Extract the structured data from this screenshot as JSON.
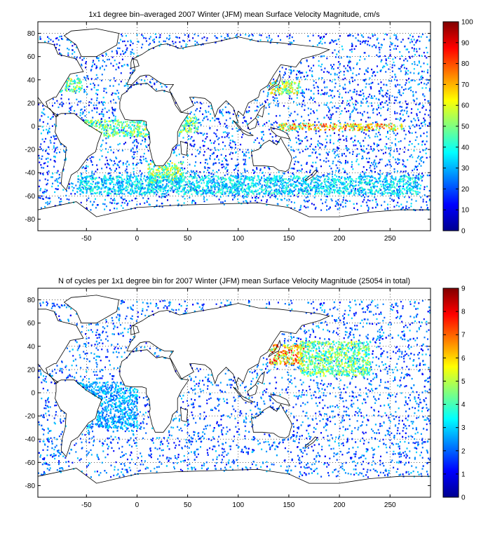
{
  "chart_data": [
    {
      "type": "heatmap",
      "title": "1x1 degree bin–averaged 2007 Winter (JFM) mean Surface Velocity Magnitude, cm/s",
      "xlabel": "",
      "ylabel": "",
      "xlim": [
        -98,
        290
      ],
      "ylim": [
        -90,
        90
      ],
      "x_ticks": [
        -50,
        0,
        50,
        100,
        150,
        200,
        250
      ],
      "y_ticks": [
        -80,
        -60,
        -40,
        -20,
        0,
        20,
        40,
        60,
        80
      ],
      "grid": true,
      "colorbar": {
        "min": 0,
        "max": 100,
        "ticks": [
          0,
          10,
          20,
          30,
          40,
          50,
          60,
          70,
          80,
          90,
          100
        ],
        "colormap": "jet"
      },
      "background_points": {
        "count": 3200,
        "value_range": [
          8,
          35
        ]
      },
      "high_value_bands": [
        {
          "lon": [
            140,
            262
          ],
          "lat": [
            -3,
            3
          ],
          "value": 75
        },
        {
          "lon": [
            -55,
            15
          ],
          "lat": [
            -8,
            6
          ],
          "value": 55
        },
        {
          "lon": [
            130,
            160
          ],
          "lat": [
            28,
            40
          ],
          "value": 65
        },
        {
          "lon": [
            -80,
            -55
          ],
          "lat": [
            30,
            42
          ],
          "value": 55
        },
        {
          "lon": [
            10,
            45
          ],
          "lat": [
            -48,
            -30
          ],
          "value": 60
        },
        {
          "lon": [
            -60,
            280
          ],
          "lat": [
            -58,
            -42
          ],
          "value": 40
        },
        {
          "lon": [
            40,
            60
          ],
          "lat": [
            -5,
            10
          ],
          "value": 55
        }
      ]
    },
    {
      "type": "heatmap",
      "title": "N of cycles per 1x1 degree bin for 2007 Winter (JFM) mean Surface Velocity Magnitude (25054 in total)",
      "xlabel": "",
      "ylabel": "",
      "xlim": [
        -98,
        290
      ],
      "ylim": [
        -90,
        90
      ],
      "x_ticks": [
        -50,
        0,
        50,
        100,
        150,
        200,
        250
      ],
      "y_ticks": [
        -80,
        -60,
        -40,
        -20,
        0,
        20,
        40,
        60,
        80
      ],
      "grid": true,
      "colorbar": {
        "min": 0,
        "max": 9,
        "ticks": [
          0,
          1,
          2,
          3,
          4,
          5,
          6,
          7,
          8,
          9
        ],
        "colormap": "jet"
      },
      "background_points": {
        "count": 3400,
        "value_range": [
          1,
          3
        ]
      },
      "high_value_bands": [
        {
          "lon": [
            130,
            165
          ],
          "lat": [
            25,
            42
          ],
          "value": 7
        },
        {
          "lon": [
            160,
            230
          ],
          "lat": [
            15,
            45
          ],
          "value": 5
        },
        {
          "lon": [
            -60,
            0
          ],
          "lat": [
            -30,
            10
          ],
          "value": 3
        }
      ]
    }
  ]
}
